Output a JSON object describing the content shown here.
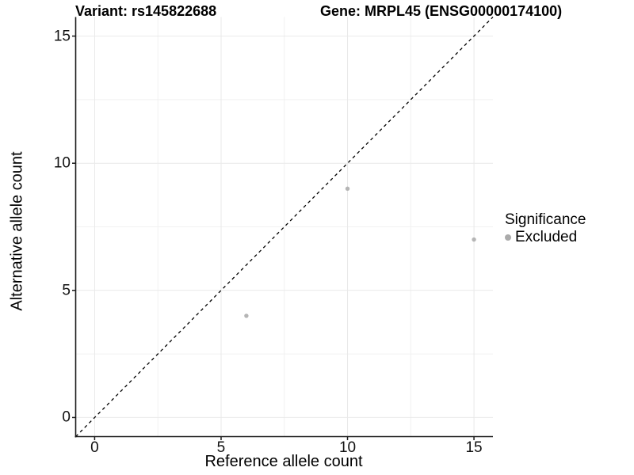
{
  "chart_data": {
    "type": "scatter",
    "title_left": "Variant: rs145822688",
    "title_right": "Gene: MRPL45 (ENSG00000174100)",
    "xlabel": "Reference allele count",
    "ylabel": "Alternative allele count",
    "xlim": [
      -0.75,
      15.75
    ],
    "ylim": [
      -0.75,
      15.75
    ],
    "x_major_ticks": [
      0,
      5,
      10,
      15
    ],
    "y_major_ticks": [
      0,
      5,
      10,
      15
    ],
    "x_minor_gridlines": [
      2.5,
      7.5,
      12.5
    ],
    "y_minor_gridlines": [
      2.5,
      7.5,
      12.5
    ],
    "grid": true,
    "identity_line": {
      "style": "dashed",
      "from": -0.75,
      "to": 15.75,
      "color": "#000000"
    },
    "series": [
      {
        "name": "Excluded",
        "color": "#b5b5b5",
        "points": [
          {
            "x": 6,
            "y": 4
          },
          {
            "x": 10,
            "y": 9
          },
          {
            "x": 15,
            "y": 7
          }
        ]
      }
    ],
    "legend": {
      "title": "Significance",
      "position": "right",
      "items": [
        {
          "label": "Excluded",
          "color": "#ababab"
        }
      ]
    },
    "colors": {
      "grid_major": "#e9e9e9",
      "grid_minor": "#f1f1f1",
      "axis": "#1a1a1a",
      "background": "#ffffff"
    }
  }
}
